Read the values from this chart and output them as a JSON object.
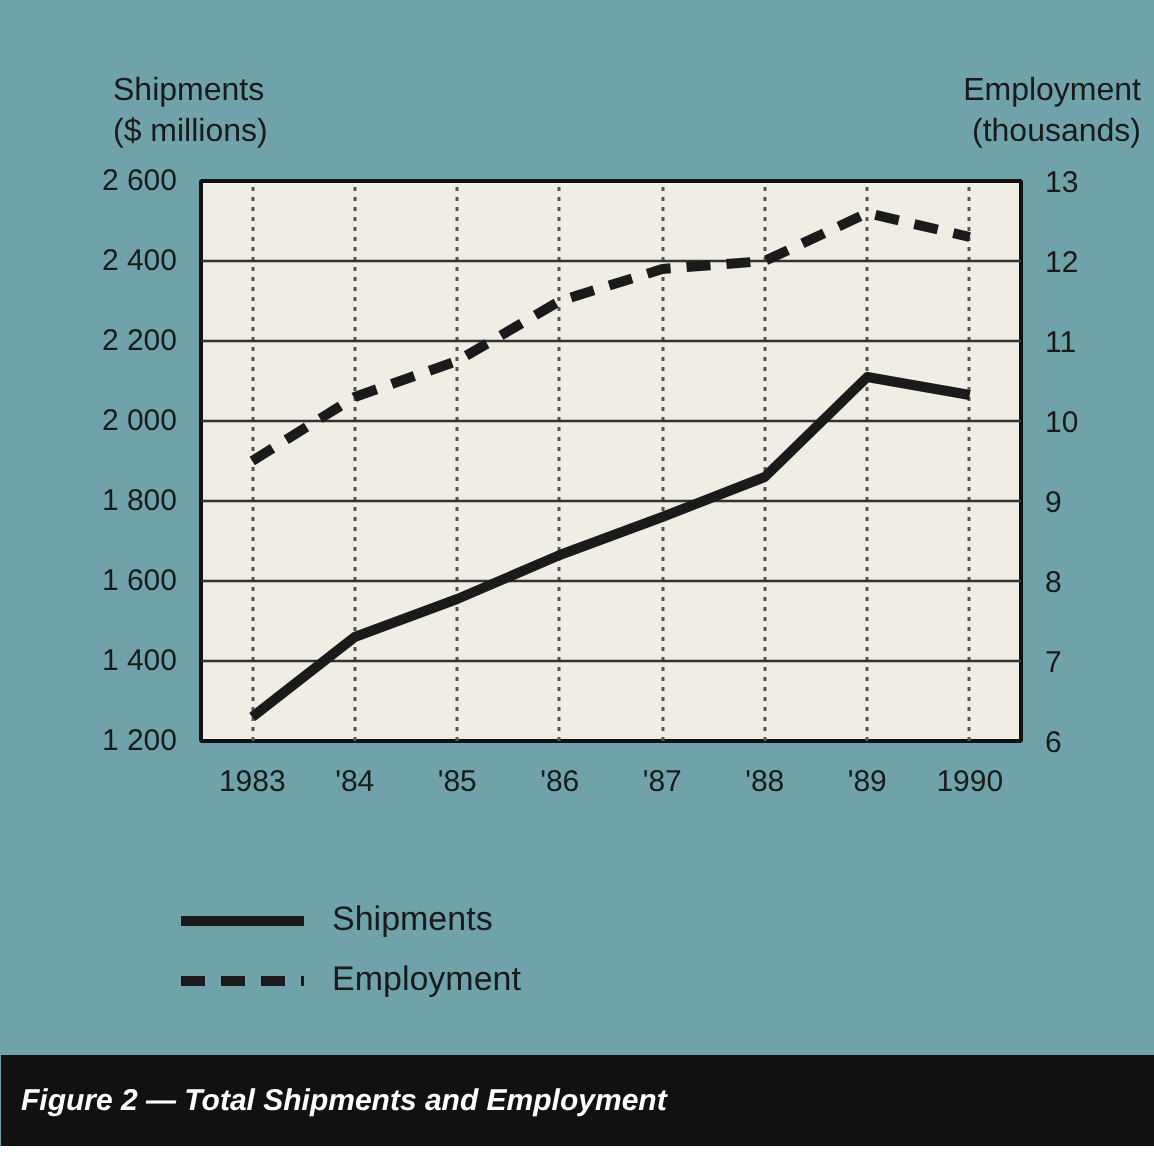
{
  "chart_data": {
    "type": "line",
    "title": "Figure 2 — Total Shipments and Employment",
    "ylabel": "Shipments\n($ millions)",
    "y2label": "Employment\n(thousands)",
    "categories": [
      "1983",
      "'84",
      "'85",
      "'86",
      "'87",
      "'88",
      "'89",
      "1990"
    ],
    "series": [
      {
        "name": "Shipments",
        "color": "#1a1a1a",
        "line_style": "solid",
        "values": [
          1260,
          1460,
          1555,
          1665,
          1760,
          1860,
          2110,
          2065
        ]
      },
      {
        "name": "Employment",
        "color": "#1a1a1a",
        "line_style": "dashed",
        "axis": "y2",
        "values": [
          9.5,
          10.3,
          10.75,
          11.5,
          11.9,
          12.0,
          12.6,
          12.3
        ]
      }
    ],
    "ylim": [
      1200,
      2600
    ],
    "yticks": [
      {
        "value": 1200,
        "label": "1 200"
      },
      {
        "value": 1400,
        "label": "1 400"
      },
      {
        "value": 1600,
        "label": "1 600"
      },
      {
        "value": 1800,
        "label": "1 800"
      },
      {
        "value": 2000,
        "label": "2 000"
      },
      {
        "value": 2200,
        "label": "2 200"
      },
      {
        "value": 2400,
        "label": "2 400"
      },
      {
        "value": 2600,
        "label": "2 600"
      }
    ],
    "y2lim": [
      6,
      13
    ],
    "y2ticks": [
      6,
      7,
      8,
      9,
      10,
      11,
      12,
      13
    ],
    "grid": true,
    "legend": "bottom",
    "marker": "none"
  }
}
